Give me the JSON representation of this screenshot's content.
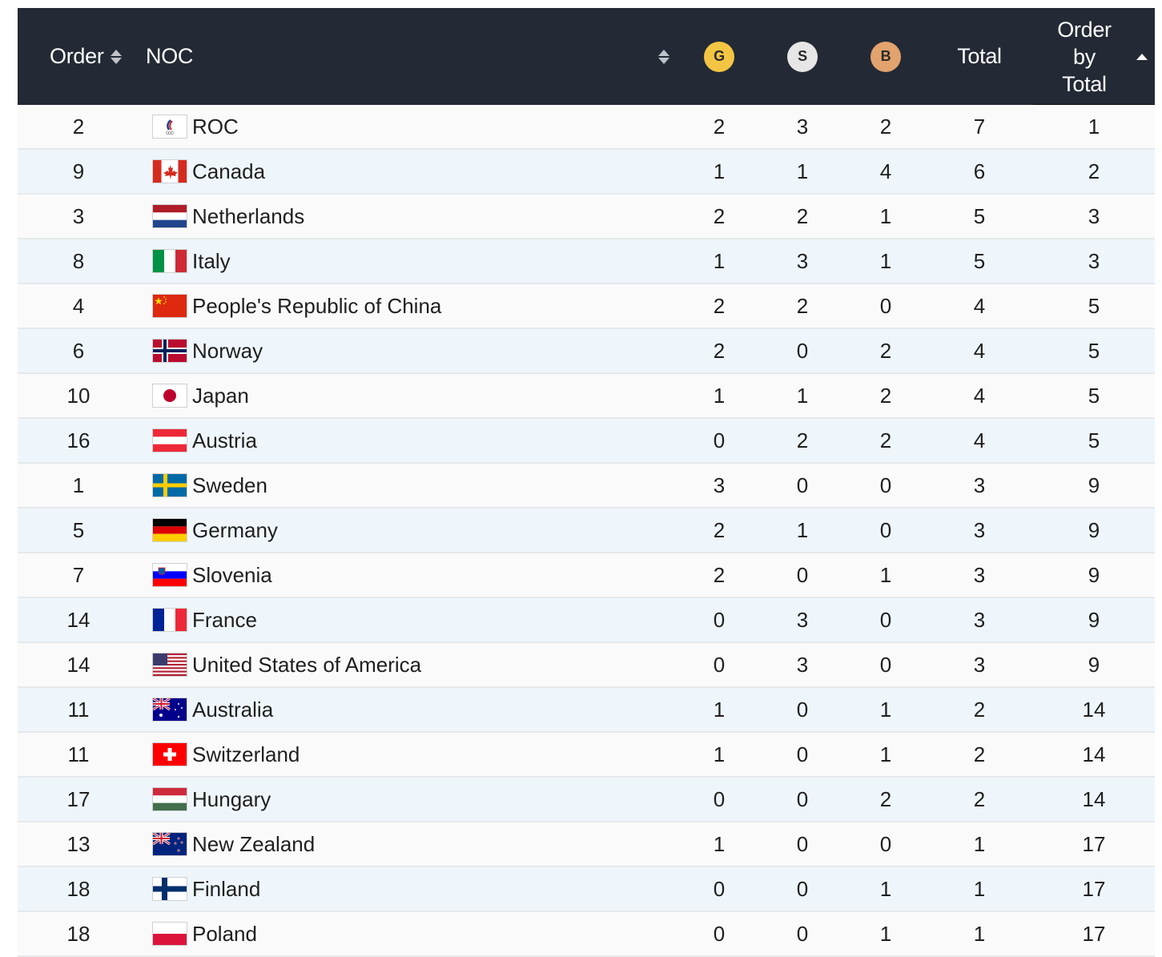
{
  "header": {
    "order": "Order",
    "noc": "NOC",
    "gold": "G",
    "silver": "S",
    "bronze": "B",
    "total": "Total",
    "order_by_total": [
      "Order",
      "by",
      "Total"
    ]
  },
  "rows": [
    {
      "order": "2",
      "flag": "roc-flag-icon",
      "country": "ROC",
      "gold": "2",
      "silver": "3",
      "bronze": "2",
      "total": "7",
      "order_by_total": "1"
    },
    {
      "order": "9",
      "flag": "canada-flag-icon",
      "country": "Canada",
      "gold": "1",
      "silver": "1",
      "bronze": "4",
      "total": "6",
      "order_by_total": "2"
    },
    {
      "order": "3",
      "flag": "netherlands-flag-icon",
      "country": "Netherlands",
      "gold": "2",
      "silver": "2",
      "bronze": "1",
      "total": "5",
      "order_by_total": "3"
    },
    {
      "order": "8",
      "flag": "italy-flag-icon",
      "country": "Italy",
      "gold": "1",
      "silver": "3",
      "bronze": "1",
      "total": "5",
      "order_by_total": "3"
    },
    {
      "order": "4",
      "flag": "china-flag-icon",
      "country": "People's Republic of China",
      "gold": "2",
      "silver": "2",
      "bronze": "0",
      "total": "4",
      "order_by_total": "5"
    },
    {
      "order": "6",
      "flag": "norway-flag-icon",
      "country": "Norway",
      "gold": "2",
      "silver": "0",
      "bronze": "2",
      "total": "4",
      "order_by_total": "5"
    },
    {
      "order": "10",
      "flag": "japan-flag-icon",
      "country": "Japan",
      "gold": "1",
      "silver": "1",
      "bronze": "2",
      "total": "4",
      "order_by_total": "5"
    },
    {
      "order": "16",
      "flag": "austria-flag-icon",
      "country": "Austria",
      "gold": "0",
      "silver": "2",
      "bronze": "2",
      "total": "4",
      "order_by_total": "5"
    },
    {
      "order": "1",
      "flag": "sweden-flag-icon",
      "country": "Sweden",
      "gold": "3",
      "silver": "0",
      "bronze": "0",
      "total": "3",
      "order_by_total": "9"
    },
    {
      "order": "5",
      "flag": "germany-flag-icon",
      "country": "Germany",
      "gold": "2",
      "silver": "1",
      "bronze": "0",
      "total": "3",
      "order_by_total": "9"
    },
    {
      "order": "7",
      "flag": "slovenia-flag-icon",
      "country": "Slovenia",
      "gold": "2",
      "silver": "0",
      "bronze": "1",
      "total": "3",
      "order_by_total": "9"
    },
    {
      "order": "14",
      "flag": "france-flag-icon",
      "country": "France",
      "gold": "0",
      "silver": "3",
      "bronze": "0",
      "total": "3",
      "order_by_total": "9"
    },
    {
      "order": "14",
      "flag": "usa-flag-icon",
      "country": "United States of America",
      "gold": "0",
      "silver": "3",
      "bronze": "0",
      "total": "3",
      "order_by_total": "9"
    },
    {
      "order": "11",
      "flag": "australia-flag-icon",
      "country": "Australia",
      "gold": "1",
      "silver": "0",
      "bronze": "1",
      "total": "2",
      "order_by_total": "14"
    },
    {
      "order": "11",
      "flag": "switzerland-flag-icon",
      "country": "Switzerland",
      "gold": "1",
      "silver": "0",
      "bronze": "1",
      "total": "2",
      "order_by_total": "14"
    },
    {
      "order": "17",
      "flag": "hungary-flag-icon",
      "country": "Hungary",
      "gold": "0",
      "silver": "0",
      "bronze": "2",
      "total": "2",
      "order_by_total": "14"
    },
    {
      "order": "13",
      "flag": "new-zealand-flag-icon",
      "country": "New Zealand",
      "gold": "1",
      "silver": "0",
      "bronze": "0",
      "total": "1",
      "order_by_total": "17"
    },
    {
      "order": "18",
      "flag": "finland-flag-icon",
      "country": "Finland",
      "gold": "0",
      "silver": "0",
      "bronze": "1",
      "total": "1",
      "order_by_total": "17"
    },
    {
      "order": "18",
      "flag": "poland-flag-icon",
      "country": "Poland",
      "gold": "0",
      "silver": "0",
      "bronze": "1",
      "total": "1",
      "order_by_total": "17"
    }
  ],
  "colors": {
    "header_bg": "#232a35",
    "row_odd": "#fafafa",
    "row_even": "#eef6fc",
    "gold": "#f4c543",
    "silver": "#e6e6e6",
    "bronze": "#e2a36e"
  }
}
